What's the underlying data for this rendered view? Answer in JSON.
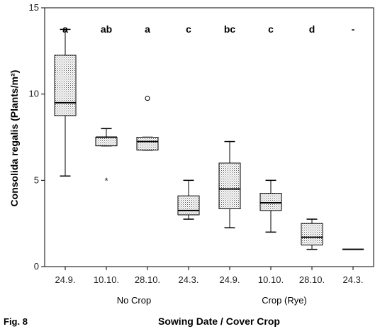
{
  "figure_label": "Fig. 8",
  "chart_data": {
    "type": "boxplot",
    "xlabel": "Sowing Date / Cover Crop",
    "ylabel": "Consolida regalis (Plants/m²)",
    "ylim": [
      0,
      15
    ],
    "yticks": [
      "0",
      "5",
      "10",
      "15"
    ],
    "groups": [
      "No Crop",
      "Crop (Rye)"
    ],
    "categories": [
      "24.9.",
      "10.10.",
      "28.10.",
      "24.3.",
      "24.9.",
      "10.10.",
      "28.10.",
      "24.3."
    ],
    "significance": [
      "a",
      "ab",
      "a",
      "c",
      "bc",
      "c",
      "d",
      "-"
    ],
    "boxes": [
      {
        "min": 5.25,
        "q1": 8.75,
        "median": 9.5,
        "q3": 12.25,
        "max": 13.75,
        "outliers": []
      },
      {
        "min": 7.0,
        "q1": 7.0,
        "median": 7.5,
        "q3": 7.5,
        "max": 8.0,
        "outliers": [
          {
            "value": 5.0,
            "symbol": "*"
          }
        ]
      },
      {
        "min": 6.75,
        "q1": 6.75,
        "median": 7.25,
        "q3": 7.5,
        "max": 7.5,
        "outliers": [
          {
            "value": 9.75,
            "symbol": "o"
          }
        ]
      },
      {
        "min": 2.75,
        "q1": 3.0,
        "median": 3.25,
        "q3": 4.1,
        "max": 5.0,
        "outliers": []
      },
      {
        "min": 2.25,
        "q1": 3.35,
        "median": 4.5,
        "q3": 6.0,
        "max": 7.25,
        "outliers": []
      },
      {
        "min": 2.0,
        "q1": 3.25,
        "median": 3.7,
        "q3": 4.25,
        "max": 5.0,
        "outliers": []
      },
      {
        "min": 1.0,
        "q1": 1.25,
        "median": 1.7,
        "q3": 2.5,
        "max": 2.75,
        "outliers": []
      },
      {
        "min": 1.0,
        "q1": 1.0,
        "median": 1.0,
        "q3": 1.0,
        "max": 1.0,
        "outliers": []
      }
    ]
  }
}
